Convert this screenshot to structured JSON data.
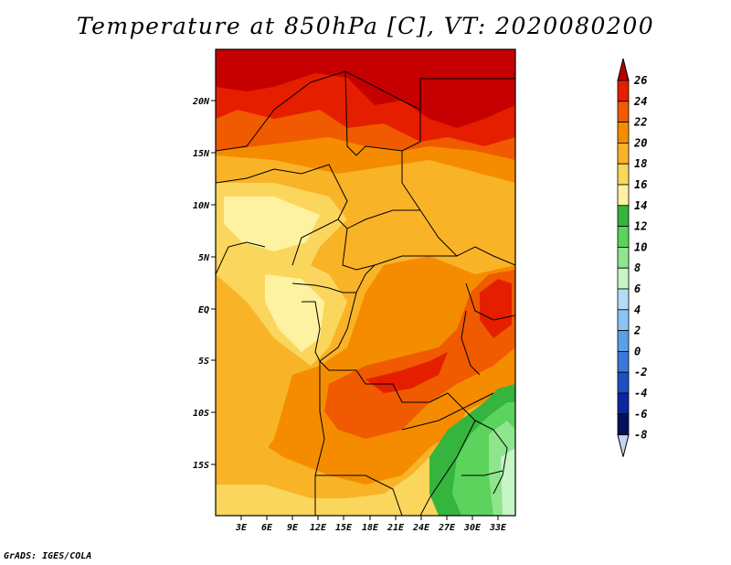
{
  "title": "Temperature at 850hPa [C], VT: 2020080200",
  "footer": "GrADS: IGES/COLA",
  "map": {
    "lat_labels": [
      "20N",
      "15N",
      "10N",
      "5N",
      "EQ",
      "5S",
      "10S",
      "15S"
    ],
    "lon_labels": [
      "3E",
      "6E",
      "9E",
      "12E",
      "15E",
      "18E",
      "21E",
      "24E",
      "27E",
      "30E",
      "33E"
    ]
  },
  "colorbar": {
    "labels": [
      "26",
      "24",
      "22",
      "20",
      "18",
      "16",
      "14",
      "12",
      "10",
      "8",
      "6",
      "4",
      "2",
      "0",
      "-2",
      "-4",
      "-6",
      "-8"
    ],
    "colors": [
      "#c60000",
      "#e61e00",
      "#f05a00",
      "#f58c00",
      "#f9b327",
      "#fbd65c",
      "#fdf2a1",
      "#35b53d",
      "#5cd35c",
      "#8ee58e",
      "#c6f5c6",
      "#b4dcf5",
      "#8cc3f0",
      "#5aa0e6",
      "#3c78dc",
      "#1e50c3",
      "#0a28a0",
      "#04105a"
    ],
    "top_color": "#b40000",
    "bottom_color": "#c8d2f5"
  },
  "fields": {
    "c26": "#c60000",
    "c24": "#e61e00",
    "c22": "#f05a00",
    "c20": "#f58c00",
    "c18": "#f9b327",
    "c16": "#fbd65c",
    "c14": "#fdf2a1",
    "g12": "#35b53d",
    "g10": "#5cd35c",
    "g8": "#8ee58e",
    "g6": "#c6f5c6"
  }
}
